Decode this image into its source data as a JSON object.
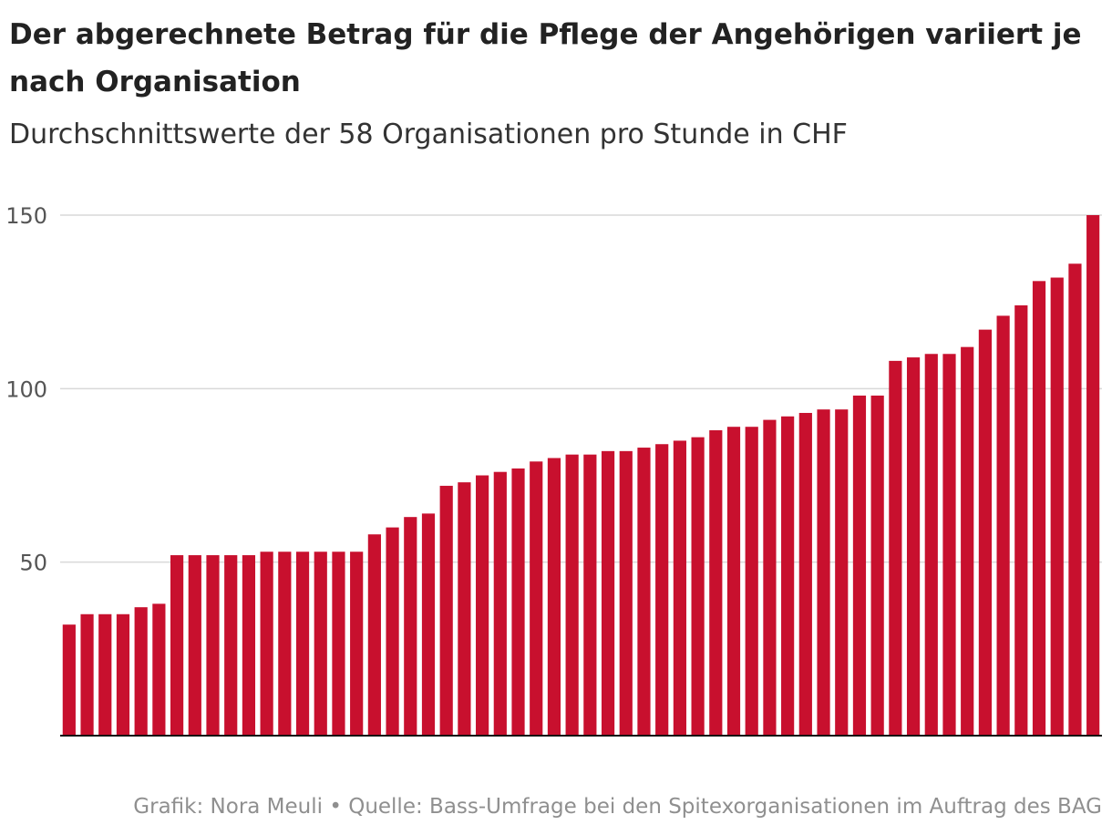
{
  "title": "Der abgerechnete Betrag für die Pflege der Angehörigen variiert je nach Organisation",
  "subtitle": "Durchschnittswerte der 58 Organisationen pro Stunde in CHF",
  "footer": "Grafik: Nora Meuli • Quelle: Bass-Umfrage bei den Spitexorganisationen im Auftrag des BAG",
  "colors": {
    "bar": "#c8102e",
    "grid": "#d9d9d9",
    "axis": "#111111",
    "tick_text": "#555555"
  },
  "chart_data": {
    "type": "bar",
    "title": "Der abgerechnete Betrag für die Pflege der Angehörigen variiert je nach Organisation",
    "subtitle": "Durchschnittswerte der 58 Organisationen pro Stunde in CHF",
    "xlabel": "",
    "ylabel": "",
    "ylim": [
      0,
      150
    ],
    "yticks": [
      50,
      100,
      150
    ],
    "grid": true,
    "legend": "none",
    "values": [
      32,
      35,
      35,
      35,
      37,
      38,
      52,
      52,
      52,
      52,
      52,
      53,
      53,
      53,
      53,
      53,
      53,
      58,
      60,
      63,
      64,
      72,
      73,
      75,
      76,
      77,
      79,
      80,
      81,
      81,
      82,
      82,
      83,
      84,
      85,
      86,
      88,
      89,
      89,
      91,
      92,
      93,
      94,
      94,
      98,
      98,
      108,
      109,
      110,
      110,
      112,
      117,
      121,
      124,
      131,
      132,
      136,
      150
    ]
  }
}
